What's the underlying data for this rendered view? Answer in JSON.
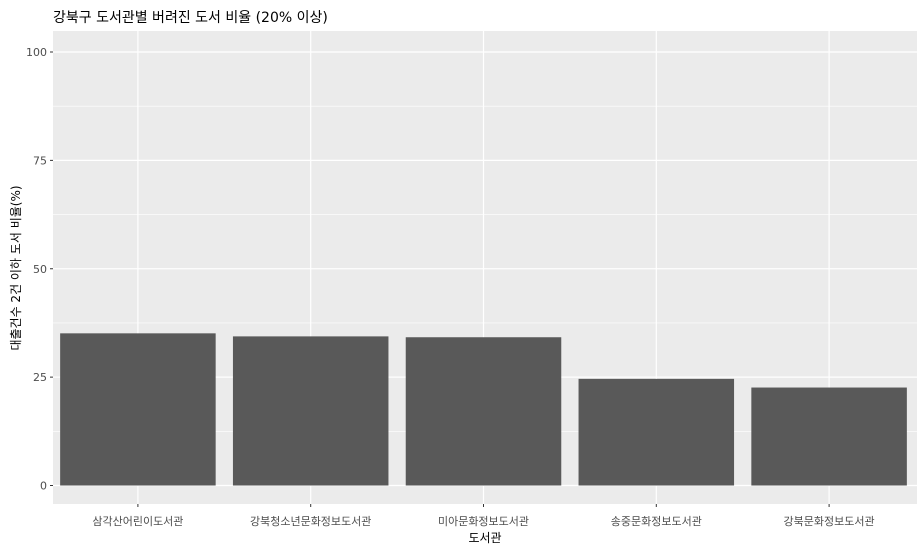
{
  "chart_data": {
    "type": "bar",
    "title": "강북구 도서관별 버려진 도서 비율 (20% 이상)",
    "xlabel": "도서관",
    "ylabel": "대출건수 2건 이하 도서 비율(%)",
    "categories": [
      "삼각산어린이도서관",
      "강북청소년문화정보도서관",
      "미아문화정보도서관",
      "송중문화정보도서관",
      "강북문화정보도서관"
    ],
    "values": [
      35.1,
      34.4,
      34.2,
      24.6,
      22.6
    ],
    "ylim": [
      0,
      105
    ],
    "yticks": [
      0,
      25,
      50,
      75,
      100
    ],
    "y_minor_ticks": [
      12.5,
      37.5,
      62.5,
      87.5
    ],
    "grid": true,
    "colors": {
      "panel_background": "#ebebeb",
      "grid": "#ffffff",
      "bar": "#595959",
      "tick_text": "#4d4d4d",
      "text": "#000000"
    }
  }
}
